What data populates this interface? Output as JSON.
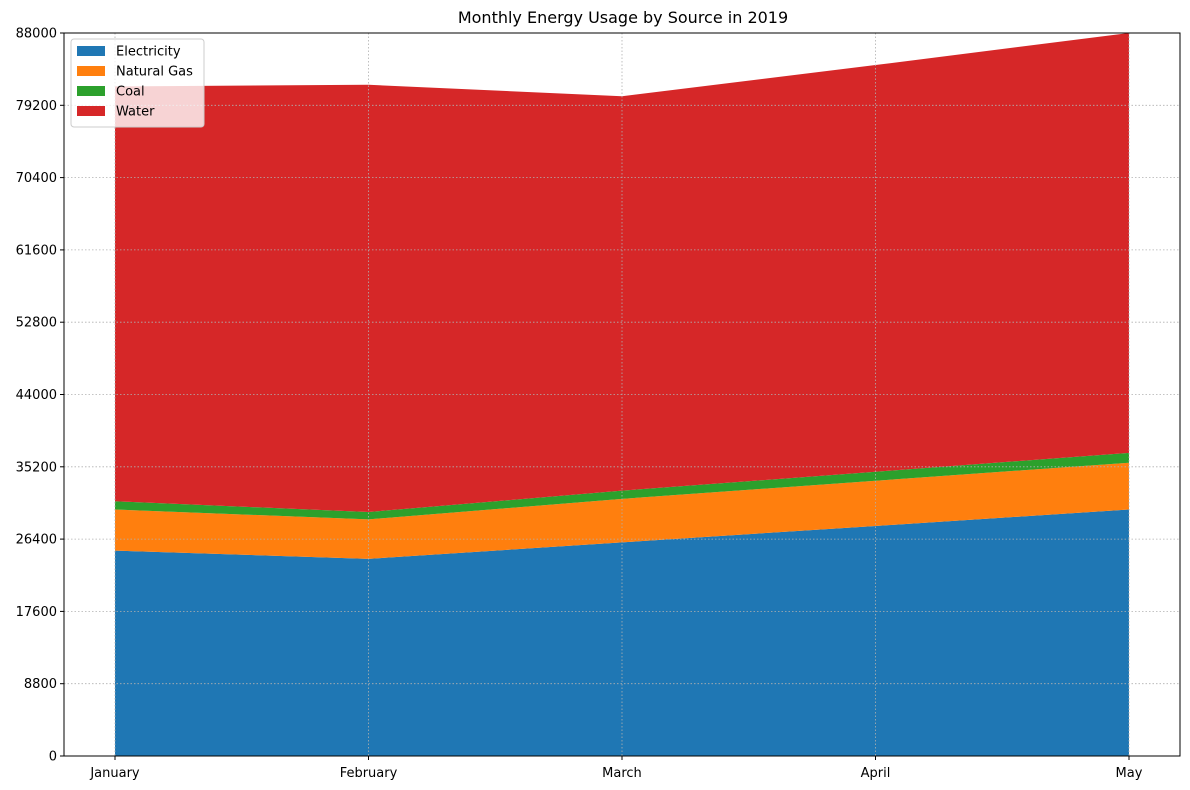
{
  "chart_data": {
    "type": "area",
    "stacked": true,
    "title": "Monthly Energy Usage by Source in 2019",
    "xlabel": "",
    "ylabel": "",
    "categories": [
      "January",
      "February",
      "March",
      "April",
      "May"
    ],
    "series": [
      {
        "name": "Electricity",
        "color": "#1f77b4",
        "values": [
          25000,
          24000,
          26000,
          28000,
          30000
        ]
      },
      {
        "name": "Natural Gas",
        "color": "#ff7f0e",
        "values": [
          5000,
          4800,
          5300,
          5500,
          5700
        ]
      },
      {
        "name": "Coal",
        "color": "#2ca02c",
        "values": [
          1000,
          900,
          1000,
          1100,
          1200
        ]
      },
      {
        "name": "Water",
        "color": "#d62728",
        "values": [
          50500,
          52000,
          48000,
          49500,
          51100
        ]
      }
    ],
    "ylim": [
      0,
      88000
    ],
    "yticks": [
      0,
      8800,
      17600,
      26400,
      35200,
      44000,
      52800,
      61600,
      70400,
      79200,
      88000
    ],
    "grid": true,
    "legend_position": "top-left"
  }
}
